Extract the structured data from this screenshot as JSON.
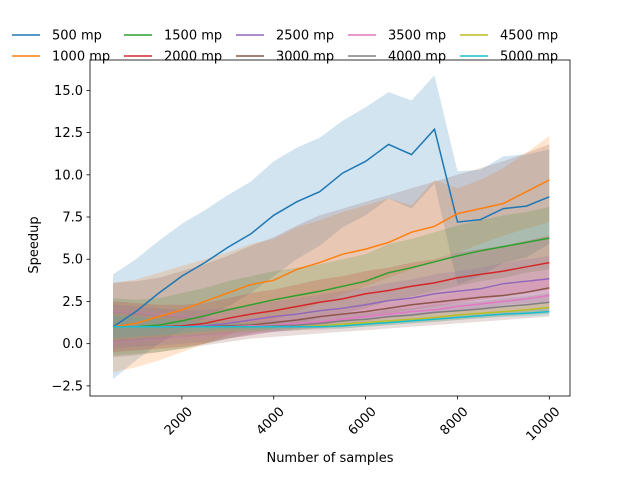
{
  "chart_data": {
    "type": "line",
    "title": "",
    "xlabel": "Number of samples",
    "ylabel": "Speedup",
    "xlim": [
      0,
      10450
    ],
    "ylim": [
      -3.1,
      16.8
    ],
    "xticks": [
      2000,
      4000,
      6000,
      8000,
      10000
    ],
    "xtick_labels": [
      "2000",
      "4000",
      "6000",
      "8000",
      "10000"
    ],
    "yticks": [
      -2.5,
      0.0,
      2.5,
      5.0,
      7.5,
      10.0,
      12.5,
      15.0
    ],
    "ytick_labels": [
      "−2.5",
      "0.0",
      "2.5",
      "5.0",
      "7.5",
      "10.0",
      "12.5",
      "15.0"
    ],
    "xtick_rotation": 45,
    "grid": false,
    "legend_position": "top",
    "x": [
      500,
      1000,
      1500,
      2000,
      2500,
      3000,
      3500,
      4000,
      4500,
      5000,
      5500,
      6000,
      6500,
      7000,
      7500,
      8000,
      8500,
      9000,
      9500,
      10000
    ],
    "series": [
      {
        "name": "500 mp",
        "color": "#1f77b4",
        "values": [
          1.0,
          1.9,
          3.0,
          4.0,
          4.8,
          5.7,
          6.5,
          7.6,
          8.4,
          9.0,
          10.1,
          10.8,
          11.8,
          11.2,
          12.7,
          7.2,
          7.35,
          8.0,
          8.15,
          8.7
        ],
        "lower": [
          -2.1,
          -1.0,
          0.0,
          0.8,
          1.5,
          2.2,
          3.0,
          4.0,
          5.0,
          5.8,
          6.9,
          7.6,
          8.6,
          8.0,
          9.5,
          3.5,
          4.0,
          4.8,
          5.1,
          5.9
        ],
        "upper": [
          4.1,
          5.0,
          6.1,
          7.1,
          7.9,
          8.8,
          9.6,
          10.8,
          11.6,
          12.2,
          13.2,
          14.0,
          14.9,
          14.4,
          15.9,
          10.2,
          10.3,
          11.1,
          11.2,
          11.5
        ]
      },
      {
        "name": "1000 mp",
        "color": "#ff7f0e",
        "values": [
          1.0,
          1.2,
          1.6,
          2.0,
          2.5,
          3.0,
          3.5,
          3.75,
          4.4,
          4.8,
          5.3,
          5.6,
          6.0,
          6.6,
          6.95,
          7.7,
          8.0,
          8.3,
          9.0,
          9.7
        ],
        "lower": [
          -1.7,
          -1.4,
          -1.0,
          -0.5,
          0.0,
          0.5,
          1.0,
          1.4,
          1.9,
          2.4,
          2.9,
          3.4,
          3.9,
          4.4,
          4.9,
          5.4,
          5.9,
          6.4,
          6.8,
          7.2
        ],
        "upper": [
          3.6,
          3.8,
          4.2,
          4.6,
          5.0,
          5.4,
          5.9,
          6.2,
          6.9,
          7.3,
          7.8,
          8.2,
          8.6,
          8.2,
          9.7,
          9.2,
          9.7,
          10.4,
          11.3,
          12.3
        ]
      },
      {
        "name": "1500 mp",
        "color": "#2ca02c",
        "values": [
          1.0,
          1.0,
          1.1,
          1.35,
          1.65,
          2.0,
          2.3,
          2.6,
          2.85,
          3.1,
          3.4,
          3.7,
          4.2,
          4.5,
          4.85,
          5.2,
          5.5,
          5.75,
          6.0,
          6.25
        ],
        "lower": [
          -0.7,
          -0.6,
          -0.5,
          -0.3,
          0.0,
          0.3,
          0.6,
          0.9,
          1.2,
          1.5,
          1.8,
          2.1,
          2.5,
          2.8,
          3.1,
          3.4,
          3.7,
          3.9,
          4.2,
          4.4
        ],
        "upper": [
          2.7,
          2.6,
          2.7,
          3.0,
          3.3,
          3.7,
          4.0,
          4.3,
          4.5,
          4.7,
          5.0,
          5.3,
          5.9,
          6.2,
          6.6,
          7.0,
          7.3,
          7.6,
          7.8,
          8.1
        ]
      },
      {
        "name": "2000 mp",
        "color": "#d62728",
        "values": [
          1.0,
          1.0,
          1.0,
          1.05,
          1.2,
          1.5,
          1.75,
          1.95,
          2.2,
          2.45,
          2.65,
          2.95,
          3.15,
          3.4,
          3.6,
          3.9,
          4.1,
          4.3,
          4.55,
          4.8
        ],
        "lower": [
          -0.5,
          -0.4,
          -0.3,
          -0.2,
          0.0,
          0.3,
          0.5,
          0.7,
          0.9,
          1.1,
          1.3,
          1.6,
          1.8,
          2.0,
          2.2,
          2.4,
          2.6,
          2.8,
          3.0,
          3.2
        ],
        "upper": [
          2.5,
          2.4,
          2.3,
          2.3,
          2.4,
          2.7,
          3.0,
          3.2,
          3.5,
          3.8,
          4.0,
          4.3,
          4.5,
          4.8,
          5.0,
          5.4,
          5.6,
          5.8,
          6.1,
          6.4
        ]
      },
      {
        "name": "2500 mp",
        "color": "#9467bd",
        "values": [
          1.0,
          1.0,
          1.0,
          1.0,
          1.05,
          1.2,
          1.4,
          1.6,
          1.75,
          1.95,
          2.1,
          2.3,
          2.55,
          2.7,
          2.95,
          3.1,
          3.25,
          3.55,
          3.7,
          3.85
        ],
        "lower": [
          -0.3,
          -0.2,
          -0.1,
          0.0,
          0.1,
          0.3,
          0.5,
          0.7,
          0.8,
          1.0,
          1.1,
          1.3,
          1.5,
          1.6,
          1.8,
          1.9,
          2.0,
          2.3,
          2.4,
          2.5
        ],
        "upper": [
          2.3,
          2.2,
          2.1,
          2.0,
          2.0,
          2.1,
          2.3,
          2.5,
          2.7,
          2.9,
          3.1,
          3.3,
          3.6,
          3.8,
          4.1,
          4.3,
          4.5,
          4.8,
          5.0,
          5.2
        ]
      },
      {
        "name": "3000 mp",
        "color": "#8c564b",
        "values": [
          1.0,
          1.0,
          1.0,
          1.0,
          1.0,
          1.05,
          1.1,
          1.25,
          1.4,
          1.6,
          1.75,
          1.9,
          2.1,
          2.3,
          2.45,
          2.6,
          2.75,
          2.85,
          3.05,
          3.3
        ],
        "lower": [
          -0.8,
          -0.7,
          -0.5,
          -0.3,
          -0.1,
          0.1,
          0.3,
          0.4,
          0.5,
          0.6,
          0.7,
          0.8,
          0.9,
          1.0,
          1.1,
          1.2,
          1.3,
          1.4,
          1.5,
          1.6
        ],
        "upper": [
          3.6,
          3.7,
          3.9,
          4.3,
          4.7,
          5.2,
          5.8,
          6.3,
          7.0,
          7.6,
          8.0,
          8.4,
          8.8,
          9.2,
          9.6,
          10.0,
          10.4,
          10.8,
          11.3,
          11.8
        ]
      },
      {
        "name": "3500 mp",
        "color": "#e377c2",
        "values": [
          1.0,
          1.0,
          1.0,
          1.0,
          1.0,
          1.0,
          1.05,
          1.1,
          1.2,
          1.3,
          1.45,
          1.6,
          1.75,
          1.9,
          2.0,
          2.2,
          2.35,
          2.5,
          2.65,
          2.85
        ],
        "lower": [
          0.0,
          0.1,
          0.2,
          0.3,
          0.4,
          0.5,
          0.6,
          0.7,
          0.8,
          0.8,
          0.9,
          1.0,
          1.1,
          1.2,
          1.3,
          1.4,
          1.5,
          1.6,
          1.7,
          1.8
        ],
        "upper": [
          2.0,
          1.9,
          1.8,
          1.7,
          1.6,
          1.5,
          1.5,
          1.5,
          1.6,
          1.8,
          2.0,
          2.2,
          2.4,
          2.6,
          2.7,
          3.0,
          3.2,
          3.4,
          3.6,
          3.9
        ]
      },
      {
        "name": "4000 mp",
        "color": "#7f7f7f",
        "values": [
          1.0,
          1.0,
          1.0,
          1.0,
          1.0,
          1.0,
          1.0,
          1.05,
          1.1,
          1.2,
          1.35,
          1.45,
          1.6,
          1.7,
          1.85,
          1.95,
          2.05,
          2.2,
          2.3,
          2.45
        ],
        "lower": [
          0.1,
          0.2,
          0.3,
          0.4,
          0.5,
          0.6,
          0.7,
          0.7,
          0.8,
          0.9,
          1.0,
          1.1,
          1.2,
          1.3,
          1.4,
          1.5,
          1.6,
          1.7,
          1.8,
          1.9
        ],
        "upper": [
          1.9,
          1.8,
          1.7,
          1.6,
          1.5,
          1.4,
          1.3,
          1.4,
          1.4,
          1.5,
          1.7,
          1.8,
          2.0,
          2.1,
          2.3,
          2.4,
          2.5,
          2.7,
          2.8,
          3.0
        ]
      },
      {
        "name": "4500 mp",
        "color": "#bcbd22",
        "values": [
          1.0,
          1.0,
          1.0,
          1.0,
          1.0,
          1.0,
          1.0,
          1.0,
          1.0,
          1.05,
          1.15,
          1.25,
          1.35,
          1.45,
          1.55,
          1.7,
          1.8,
          1.9,
          2.0,
          2.15
        ],
        "lower": [
          0.2,
          0.3,
          0.4,
          0.5,
          0.6,
          0.7,
          0.7,
          0.8,
          0.8,
          0.9,
          0.9,
          1.0,
          1.1,
          1.2,
          1.3,
          1.4,
          1.5,
          1.6,
          1.7,
          1.8
        ],
        "upper": [
          1.8,
          1.7,
          1.6,
          1.5,
          1.4,
          1.3,
          1.3,
          1.2,
          1.2,
          1.2,
          1.4,
          1.5,
          1.6,
          1.7,
          1.8,
          2.0,
          2.1,
          2.2,
          2.3,
          2.5
        ]
      },
      {
        "name": "5000 mp",
        "color": "#17becf",
        "values": [
          1.0,
          1.0,
          1.0,
          1.0,
          1.0,
          1.0,
          1.0,
          1.0,
          1.0,
          1.0,
          1.05,
          1.15,
          1.25,
          1.35,
          1.45,
          1.55,
          1.65,
          1.75,
          1.8,
          1.9
        ],
        "lower": [
          0.3,
          0.4,
          0.5,
          0.6,
          0.7,
          0.8,
          0.8,
          0.8,
          0.9,
          0.9,
          0.9,
          1.0,
          1.1,
          1.2,
          1.3,
          1.4,
          1.5,
          1.6,
          1.6,
          1.7
        ],
        "upper": [
          1.7,
          1.6,
          1.5,
          1.4,
          1.3,
          1.2,
          1.2,
          1.2,
          1.1,
          1.1,
          1.2,
          1.3,
          1.4,
          1.5,
          1.6,
          1.7,
          1.8,
          1.9,
          2.0,
          2.1
        ]
      }
    ]
  }
}
